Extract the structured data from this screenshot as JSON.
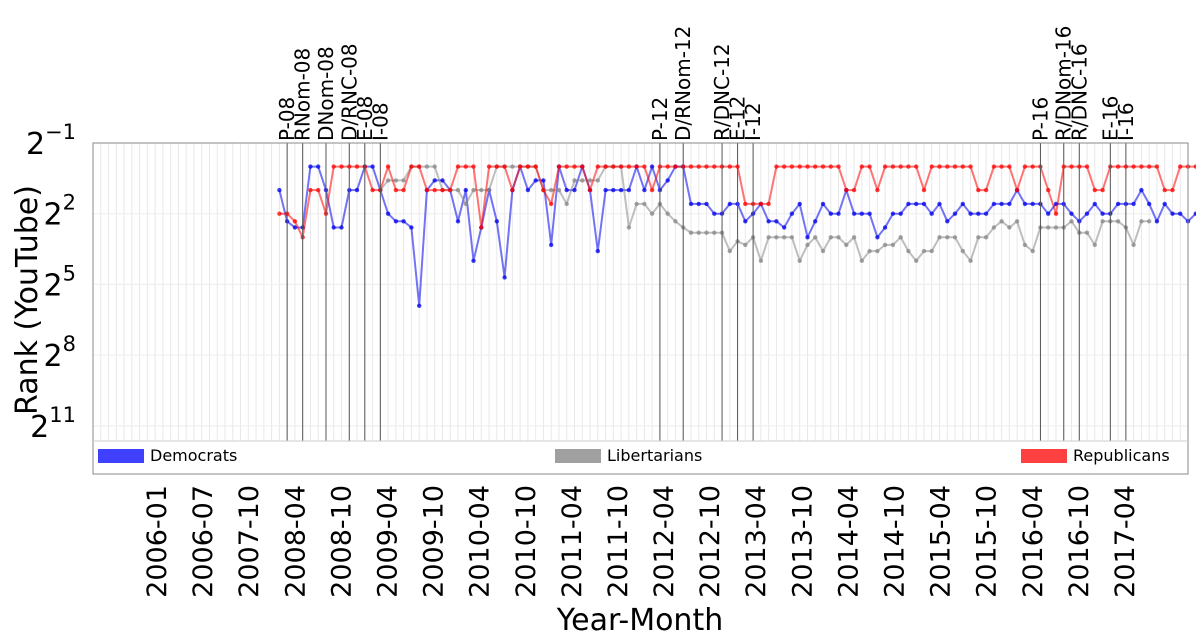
{
  "chart_data": {
    "type": "line",
    "xlabel": "Year-Month",
    "ylabel": "Rank (YouTube)",
    "y_scale": "log2",
    "y_inverted": true,
    "ylim": [
      0.5,
      3200
    ],
    "y_ticks": [
      {
        "value": 0.5,
        "base": "2",
        "exp": "−1"
      },
      {
        "value": 4,
        "base": "2",
        "exp": "2"
      },
      {
        "value": 32,
        "base": "2",
        "exp": "5"
      },
      {
        "value": 256,
        "base": "2",
        "exp": "8"
      },
      {
        "value": 2048,
        "base": "2",
        "exp": "11"
      }
    ],
    "xlim": [
      "2005-12",
      "2017-09"
    ],
    "x_tick_labels": [
      "2006-01",
      "2006-07",
      "2007-10",
      "2008-04",
      "2008-10",
      "2009-04",
      "2009-10",
      "2010-04",
      "2010-10",
      "2011-04",
      "2011-10",
      "2012-04",
      "2012-10",
      "2013-04",
      "2013-10",
      "2014-04",
      "2014-10",
      "2015-04",
      "2015-10",
      "2016-04",
      "2016-10",
      "2017-04"
    ],
    "grid": true,
    "legend_position": "bottom, spread across full width",
    "events": [
      {
        "label": "P-08",
        "date": "2008-01"
      },
      {
        "label": "RNom-08",
        "date": "2008-03"
      },
      {
        "label": "DNom-08",
        "date": "2008-06"
      },
      {
        "label": "D/RNC-08",
        "date": "2008-09"
      },
      {
        "label": "E-08",
        "date": "2008-11"
      },
      {
        "label": "I-08",
        "date": "2009-01"
      },
      {
        "label": "P-12",
        "date": "2012-01"
      },
      {
        "label": "D/RNom-12",
        "date": "2012-04"
      },
      {
        "label": "R/DNC-12",
        "date": "2012-09"
      },
      {
        "label": "E-12",
        "date": "2012-11"
      },
      {
        "label": "I-12",
        "date": "2013-01"
      },
      {
        "label": "P-16",
        "date": "2016-02"
      },
      {
        "label": "R/DNom-16",
        "date": "2016-05"
      },
      {
        "label": "R/DNC-16",
        "date": "2016-07"
      },
      {
        "label": "E-16",
        "date": "2016-11"
      },
      {
        "label": "I-16",
        "date": "2017-01"
      }
    ],
    "series": [
      {
        "name": "Democrats",
        "color": "#0000ee",
        "start": "2007-12",
        "values": [
          2,
          5,
          6,
          6,
          1,
          1,
          2,
          6,
          6,
          2,
          2,
          1,
          1,
          2,
          4,
          5,
          5,
          6,
          60,
          2,
          1.5,
          1.5,
          2,
          5,
          2,
          16,
          6,
          2,
          5,
          26,
          2,
          1,
          2,
          1.5,
          1.5,
          10,
          1,
          2,
          2,
          1,
          2,
          12,
          2,
          2,
          2,
          2,
          1,
          2,
          1,
          2,
          1.5,
          1,
          1,
          3,
          3,
          3,
          4,
          4,
          3,
          3,
          5,
          4,
          3,
          5,
          5,
          6,
          4,
          3,
          8,
          5,
          3,
          4,
          4,
          2,
          4,
          4,
          4,
          8,
          6,
          4,
          4,
          3,
          3,
          3,
          4,
          3,
          5,
          4,
          3,
          4,
          4,
          4,
          3,
          3,
          3,
          2,
          3,
          3,
          3,
          4,
          3,
          3,
          4,
          5,
          4,
          3,
          4,
          4,
          3,
          3,
          3,
          2,
          3,
          5,
          3,
          4,
          4,
          5,
          4,
          3,
          2,
          3,
          5,
          4
        ]
      },
      {
        "name": "Libertarians",
        "color": "#888888",
        "start": "2009-01",
        "values": [
          2,
          1.5,
          1.5,
          1.5,
          1,
          1,
          1,
          1,
          2,
          2,
          2,
          3,
          2,
          2,
          2,
          1,
          1,
          1,
          1,
          1,
          1,
          2,
          2,
          2,
          3,
          1.5,
          1.5,
          1.5,
          1.5,
          1,
          1,
          1,
          6,
          3,
          3,
          4,
          3,
          4,
          5,
          6,
          7,
          7,
          7,
          7,
          7,
          12,
          9,
          10,
          8,
          16,
          8,
          8,
          8,
          8,
          16,
          10,
          8,
          12,
          8,
          8,
          10,
          8,
          16,
          12,
          12,
          10,
          10,
          8,
          12,
          16,
          12,
          12,
          8,
          8,
          8,
          12,
          16,
          8,
          8,
          6,
          5,
          6,
          5,
          10,
          12,
          6,
          6,
          6,
          6,
          5,
          7,
          7,
          10,
          5,
          5,
          5,
          6,
          10,
          5,
          5
        ]
      },
      {
        "name": "Republicans",
        "color": "#ff0000",
        "start": "2007-12",
        "values": [
          4,
          4,
          5,
          8,
          2,
          2,
          4,
          1,
          1,
          1,
          1,
          1,
          2,
          2,
          1,
          2,
          2,
          1,
          1,
          2,
          2,
          2,
          2,
          1,
          1,
          1,
          6,
          1,
          1,
          1,
          2,
          1,
          1,
          1,
          2,
          3,
          1,
          1,
          1,
          1,
          2,
          1,
          1,
          1,
          1,
          1,
          1,
          1,
          2,
          1,
          1,
          1,
          1,
          1,
          1,
          1,
          1,
          1,
          1,
          1,
          3,
          3,
          3,
          3,
          1,
          1,
          1,
          1,
          1,
          1,
          1,
          1,
          1,
          2,
          2,
          1,
          1,
          2,
          1,
          1,
          1,
          1,
          1,
          2,
          1,
          1,
          1,
          1,
          1,
          1,
          2,
          2,
          1,
          1,
          1,
          2,
          1,
          1,
          1,
          2,
          4,
          1,
          1,
          1,
          1,
          2,
          2,
          1,
          1,
          1,
          1,
          1,
          1,
          1,
          2,
          2,
          1,
          1,
          1,
          1,
          1,
          3,
          3,
          1,
          1,
          1,
          1,
          1,
          1,
          1,
          1,
          1,
          1,
          1,
          1,
          1,
          1,
          1,
          1,
          1,
          1
        ]
      }
    ]
  }
}
